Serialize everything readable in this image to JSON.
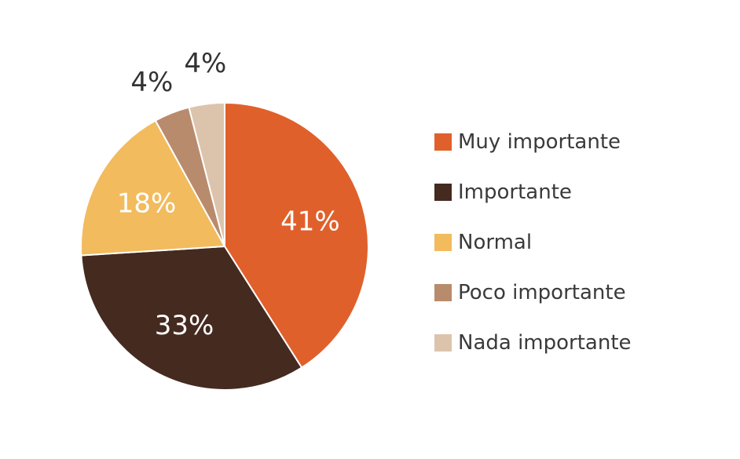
{
  "chart_data": {
    "type": "pie",
    "title": "",
    "categories": [
      "Muy importante",
      "Importante",
      "Normal",
      "Poco importante",
      "Nada importante"
    ],
    "values": [
      41,
      33,
      18,
      4,
      4
    ],
    "labels": [
      "41%",
      "33%",
      "18%",
      "4%",
      "4%"
    ],
    "colors": [
      "#e0602b",
      "#452a20",
      "#f2bb5d",
      "#b98b6d",
      "#dcc4ac"
    ],
    "label_colors": [
      "#ffffff",
      "#ffffff",
      "#ffffff",
      "#333333",
      "#333333"
    ],
    "legend_position": "right"
  }
}
